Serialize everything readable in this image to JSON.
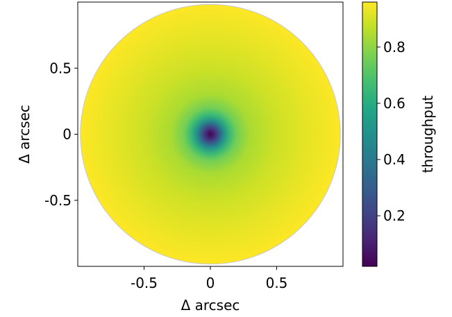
{
  "chart_data": {
    "type": "heatmap",
    "title": "",
    "xlabel": "Δ arcsec",
    "ylabel": "Δ arcsec",
    "xlim": [
      -1.0,
      1.0
    ],
    "ylim": [
      -1.0,
      1.0
    ],
    "x_ticks": [
      {
        "value": -0.5,
        "label": "-0.5"
      },
      {
        "value": 0,
        "label": "0"
      },
      {
        "value": 0.5,
        "label": "0.5"
      }
    ],
    "y_ticks": [
      {
        "value": 0.5,
        "label": "0.5"
      },
      {
        "value": 0,
        "label": "0"
      },
      {
        "value": -0.5,
        "label": "-0.5"
      }
    ],
    "grid": false,
    "field": {
      "shape": "circular aperture",
      "aperture_radius": 0.98,
      "center": [
        0,
        0
      ],
      "value_at_center": 0.02,
      "value_at_edge": 0.96,
      "profile": [
        {
          "r": 0.0,
          "value": 0.02
        },
        {
          "r": 0.05,
          "value": 0.2
        },
        {
          "r": 0.1,
          "value": 0.48
        },
        {
          "r": 0.15,
          "value": 0.66
        },
        {
          "r": 0.2,
          "value": 0.76
        },
        {
          "r": 0.3,
          "value": 0.84
        },
        {
          "r": 0.5,
          "value": 0.89
        },
        {
          "r": 0.7,
          "value": 0.92
        },
        {
          "r": 0.98,
          "value": 0.96
        }
      ]
    },
    "colorbar": {
      "label": "throughput",
      "colormap": "viridis",
      "range": [
        0.02,
        0.96
      ],
      "ticks": [
        {
          "value": 0.2,
          "label": "0.2"
        },
        {
          "value": 0.4,
          "label": "0.4"
        },
        {
          "value": 0.6,
          "label": "0.6"
        },
        {
          "value": 0.8,
          "label": "0.8"
        }
      ]
    }
  }
}
